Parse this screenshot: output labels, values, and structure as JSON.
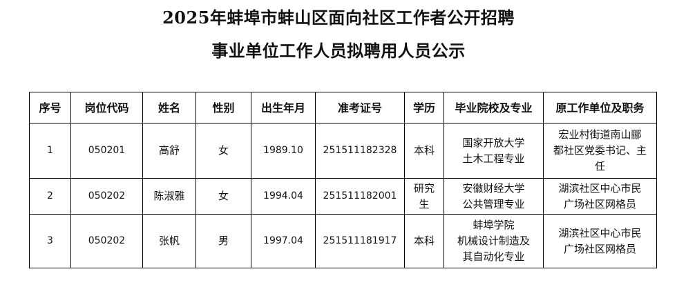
{
  "title": {
    "line1": "2025年蚌埠市蚌山区面向社区工作者公开招聘",
    "line2": "事业单位工作人员拟聘用人员公示"
  },
  "table": {
    "headers": [
      "序号",
      "岗位代码",
      "姓名",
      "性别",
      "出生年月",
      "准考证号",
      "学历",
      "毕业院校及专业",
      "原工作单位及职务"
    ],
    "rows": [
      {
        "no": "1",
        "code": "050201",
        "name": "高舒",
        "gender": "女",
        "birth": "1989.10",
        "exam_id": "251511182328",
        "education": [
          "本科"
        ],
        "school": [
          "国家开放大学",
          "土木工程专业"
        ],
        "work": [
          "宏业村街道南山郦",
          "都社区党委书记、主",
          "任"
        ]
      },
      {
        "no": "2",
        "code": "050202",
        "name": "陈淑雅",
        "gender": "女",
        "birth": "1994.04",
        "exam_id": "251511182001",
        "education": [
          "研究",
          "生"
        ],
        "school": [
          "安徽财经大学",
          "公共管理专业"
        ],
        "work": [
          "湖滨社区中心市民",
          "广场社区网格员"
        ]
      },
      {
        "no": "3",
        "code": "050202",
        "name": "张帆",
        "gender": "男",
        "birth": "1997.04",
        "exam_id": "251511181917",
        "education": [
          "本科"
        ],
        "school": [
          "蚌埠学院",
          "机械设计制造及",
          "其自动化专业"
        ],
        "work": [
          "湖滨社区中心市民",
          "广场社区网格员"
        ]
      }
    ]
  }
}
